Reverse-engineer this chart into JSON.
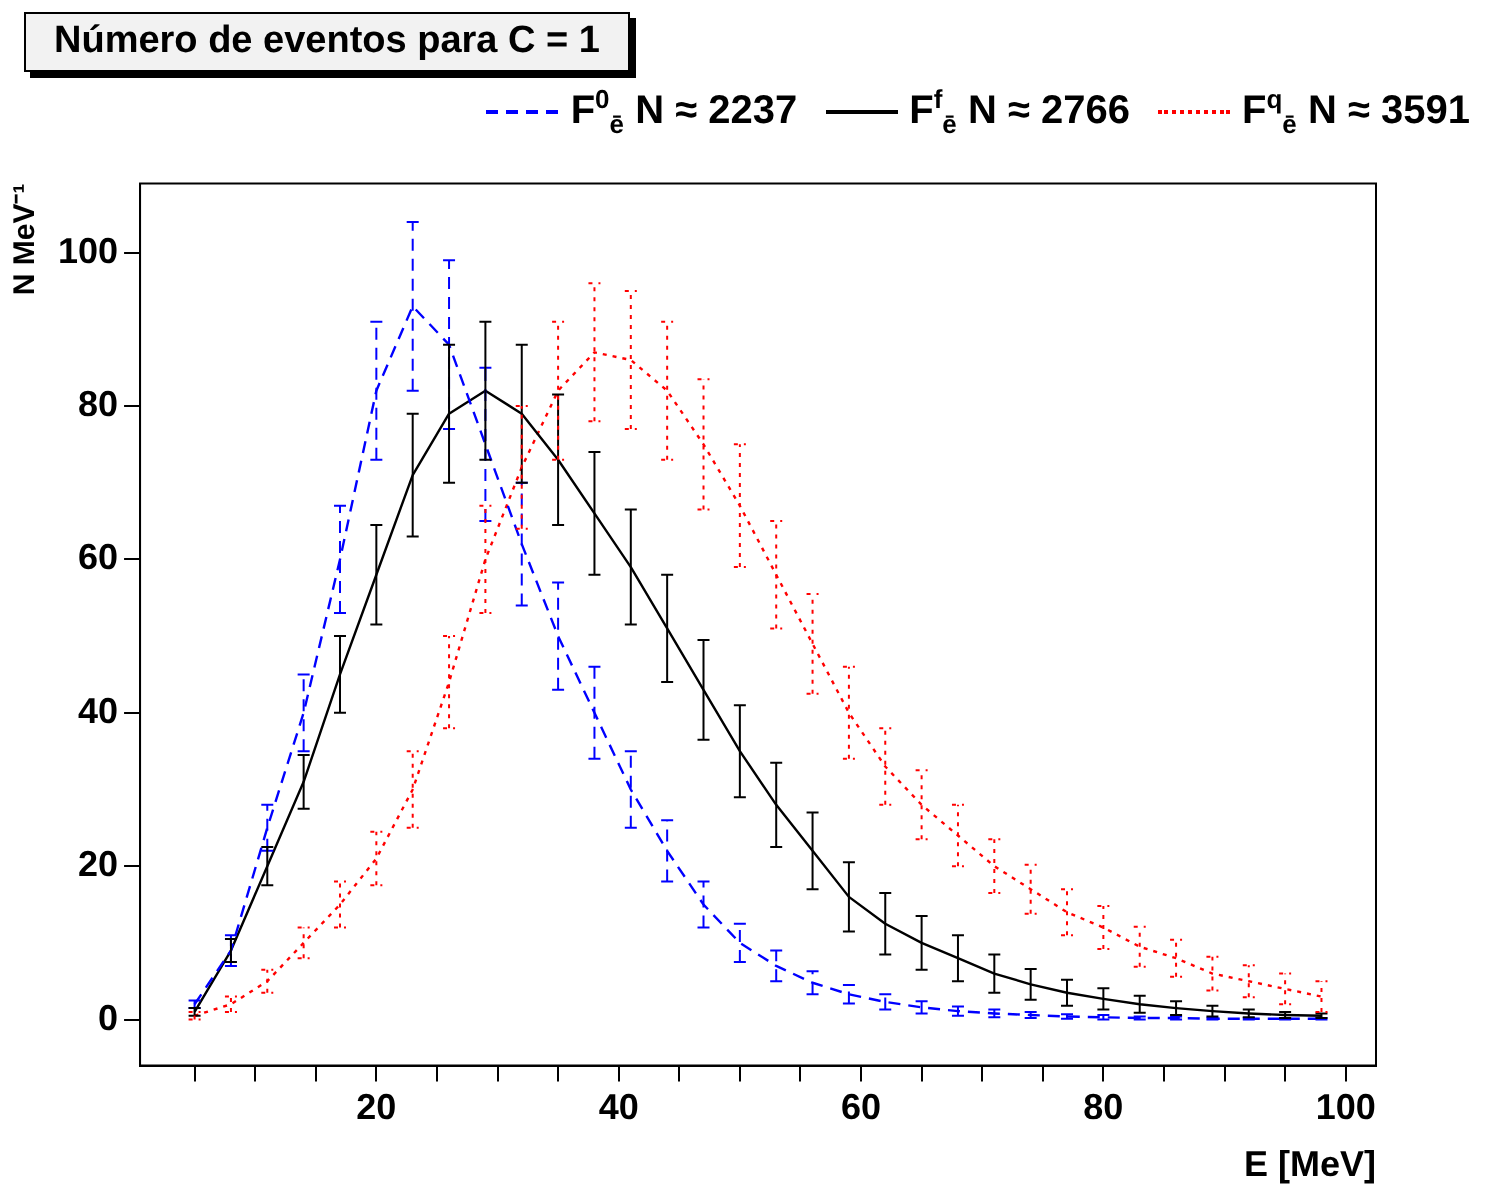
{
  "chart_data": {
    "type": "line",
    "title": "Número de eventos para C = 1",
    "xlabel": "E [MeV]",
    "ylabel": "N MeV⁻¹",
    "x": [
      5,
      8,
      11,
      14,
      17,
      20,
      23,
      26,
      29,
      32,
      35,
      38,
      41,
      44,
      47,
      50,
      53,
      56,
      59,
      62,
      65,
      68,
      71,
      74,
      77,
      80,
      83,
      86,
      89,
      92,
      95,
      98
    ],
    "xlim": [
      0.5,
      102.5
    ],
    "ylim": [
      -6,
      109
    ],
    "xticks": [
      {
        "value": 5,
        "label": null
      },
      {
        "value": 10,
        "label": null
      },
      {
        "value": 15,
        "label": null
      },
      20,
      {
        "value": 25,
        "label": null
      },
      {
        "value": 30,
        "label": null
      },
      {
        "value": 35,
        "label": null
      },
      40,
      {
        "value": 45,
        "label": null
      },
      {
        "value": 50,
        "label": null
      },
      {
        "value": 55,
        "label": null
      },
      60,
      {
        "value": 65,
        "label": null
      },
      {
        "value": 70,
        "label": null
      },
      {
        "value": 75,
        "label": null
      },
      80,
      {
        "value": 85,
        "label": null
      },
      {
        "value": 90,
        "label": null
      },
      {
        "value": 95,
        "label": null
      },
      100
    ],
    "yticks": [
      0,
      20,
      40,
      60,
      80,
      100
    ],
    "legend": "top",
    "marker": "none",
    "series": [
      {
        "name": "F$^{0}$$_{ē}$  N ≈ 2237",
        "color": "#0000ff",
        "line_style": "dashed",
        "values": [
          2,
          9,
          25,
          40,
          60,
          82,
          93,
          88,
          75,
          62,
          50,
          40,
          30,
          22,
          15,
          10,
          7,
          4.8,
          3.3,
          2.3,
          1.6,
          1.1,
          0.8,
          0.6,
          0.4,
          0.3,
          0.2,
          0.2,
          0.1,
          0.1,
          0.1,
          0.1
        ],
        "errors": [
          0.5,
          2,
          3,
          5,
          7,
          9,
          11,
          11,
          10,
          8,
          7,
          6,
          5,
          4,
          3,
          2.5,
          2,
          1.5,
          1.2,
          1,
          0.8,
          0.6,
          0.5,
          0.4,
          0.3,
          0.3,
          0.2,
          0.2,
          0.1,
          0.1,
          0.1,
          0.1
        ]
      },
      {
        "name": "F$^{f}$$_{ē}$  N ≈ 2766",
        "color": "#000000",
        "line_style": "solid",
        "values": [
          1,
          9,
          20,
          31,
          45,
          58,
          71,
          79,
          82,
          79,
          73,
          66,
          59,
          51,
          43,
          35,
          28,
          22,
          16,
          12.5,
          10,
          8,
          6,
          4.6,
          3.5,
          2.7,
          2,
          1.5,
          1.1,
          0.8,
          0.6,
          0.5
        ],
        "errors": [
          0.5,
          1.5,
          2.5,
          3.5,
          5,
          6.5,
          8,
          9,
          9,
          9,
          8.5,
          8,
          7.5,
          7,
          6.5,
          6,
          5.5,
          5,
          4.5,
          4,
          3.5,
          3,
          2.5,
          2,
          1.7,
          1.4,
          1.1,
          0.9,
          0.7,
          0.5,
          0.4,
          0.3
        ]
      },
      {
        "name": "F$^{q}$$_{ē}$  N ≈ 3591",
        "color": "#ff0000",
        "line_style": "dotted",
        "values": [
          0.5,
          2,
          5,
          10,
          15,
          21,
          30,
          44,
          60,
          72,
          82,
          87,
          86,
          82,
          75,
          67,
          58,
          49,
          40,
          33,
          28,
          24,
          20,
          17,
          14,
          12,
          9.5,
          8,
          6,
          5,
          4,
          3
        ],
        "errors": [
          0.5,
          1,
          1.5,
          2,
          3,
          3.5,
          5,
          6,
          7,
          8,
          9,
          9,
          9,
          9,
          8.5,
          8,
          7,
          6.5,
          6,
          5,
          4.5,
          4,
          3.5,
          3.2,
          3,
          2.8,
          2.6,
          2.4,
          2.2,
          2.1,
          2,
          2
        ]
      }
    ]
  }
}
